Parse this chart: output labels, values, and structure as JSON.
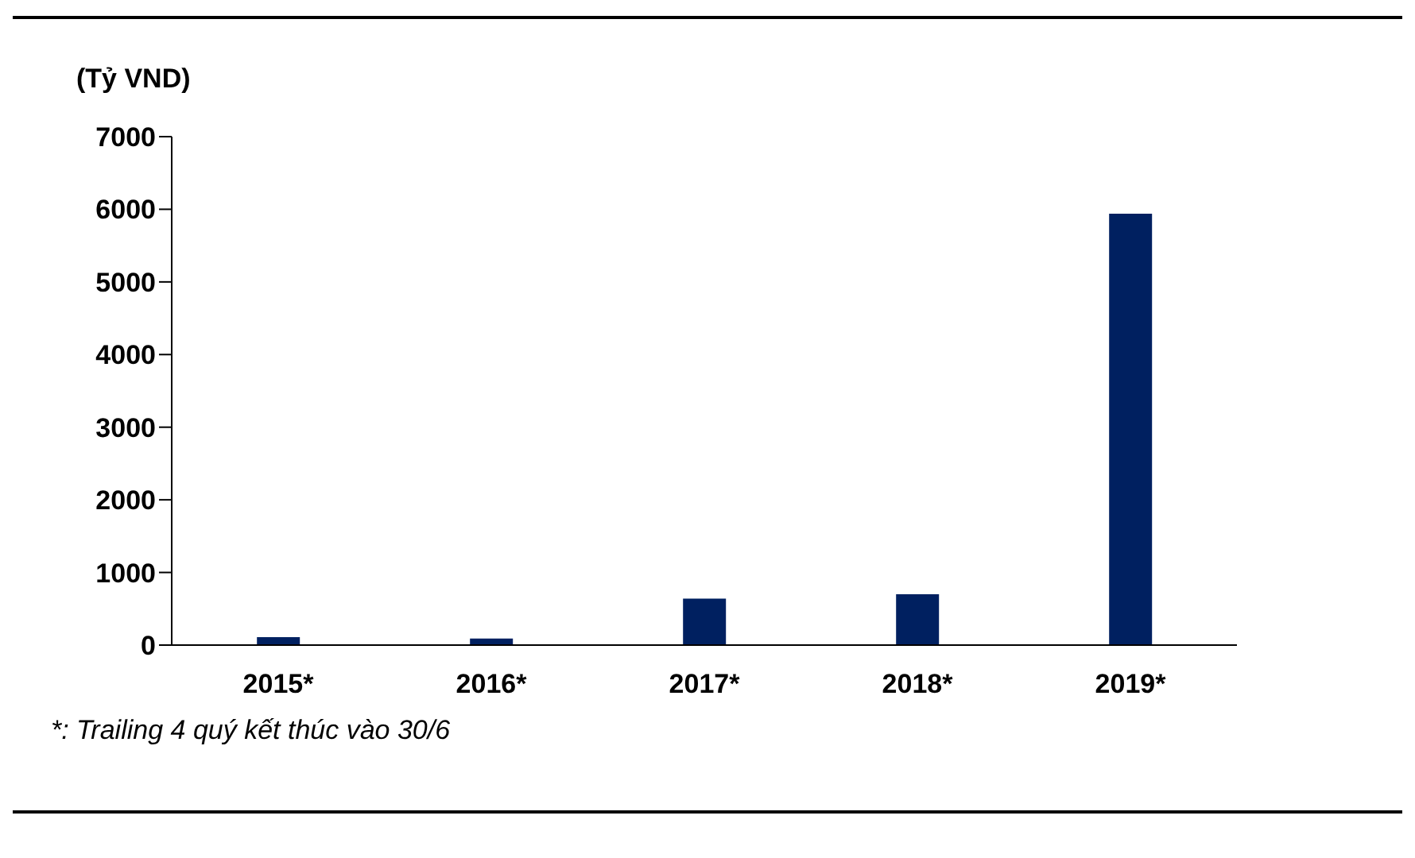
{
  "chart_data": {
    "type": "bar",
    "ylabel": "(Tỷ VND)",
    "categories": [
      "2015*",
      "2016*",
      "2017*",
      "2018*",
      "2019*"
    ],
    "values": [
      110,
      90,
      640,
      700,
      5940
    ],
    "color": "#002060",
    "ylim": [
      0,
      7000
    ],
    "yticks": [
      0,
      1000,
      2000,
      3000,
      4000,
      5000,
      6000,
      7000
    ],
    "annotations": [
      "*: Trailing 4 quý kết thúc vào 30/6"
    ]
  }
}
